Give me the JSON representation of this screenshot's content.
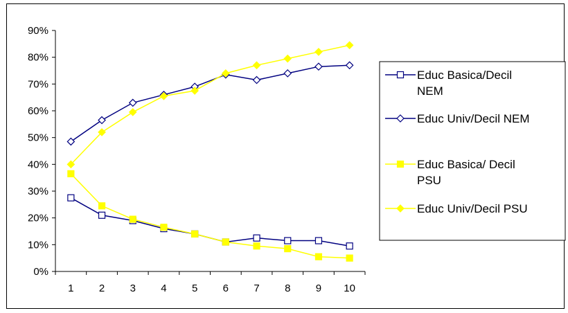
{
  "chart_data": {
    "type": "line",
    "title": "",
    "xlabel": "",
    "ylabel": "",
    "x": [
      1,
      2,
      3,
      4,
      5,
      6,
      7,
      8,
      9,
      10
    ],
    "y_ticks": [
      "0%",
      "10%",
      "20%",
      "30%",
      "40%",
      "50%",
      "60%",
      "70%",
      "80%",
      "90%"
    ],
    "ylim": [
      0,
      0.9
    ],
    "grid": false,
    "legend_position": "right",
    "series": [
      {
        "name": "Educ Basica/Decil NEM",
        "name_lines": [
          "Educ Basica/Decil",
          "NEM"
        ],
        "color": "#000080",
        "marker": "open-square",
        "values": [
          0.275,
          0.21,
          0.19,
          0.16,
          0.14,
          0.11,
          0.125,
          0.115,
          0.115,
          0.095
        ]
      },
      {
        "name": "Educ Univ/Decil NEM",
        "name_lines": [
          "Educ Univ/Decil NEM"
        ],
        "color": "#000080",
        "marker": "open-diamond",
        "values": [
          0.485,
          0.565,
          0.63,
          0.66,
          0.69,
          0.735,
          0.715,
          0.74,
          0.765,
          0.77
        ]
      },
      {
        "name": "Educ Basica/ Decil PSU",
        "name_lines": [
          "Educ Basica/ Decil",
          "PSU"
        ],
        "color": "#FFFF00",
        "marker": "filled-square",
        "values": [
          0.365,
          0.245,
          0.195,
          0.165,
          0.14,
          0.11,
          0.095,
          0.085,
          0.055,
          0.05
        ]
      },
      {
        "name": "Educ Univ/Decil PSU",
        "name_lines": [
          "Educ Univ/Decil PSU"
        ],
        "color": "#FFFF00",
        "marker": "filled-diamond",
        "values": [
          0.4,
          0.52,
          0.595,
          0.655,
          0.675,
          0.74,
          0.77,
          0.795,
          0.82,
          0.845
        ]
      }
    ]
  }
}
